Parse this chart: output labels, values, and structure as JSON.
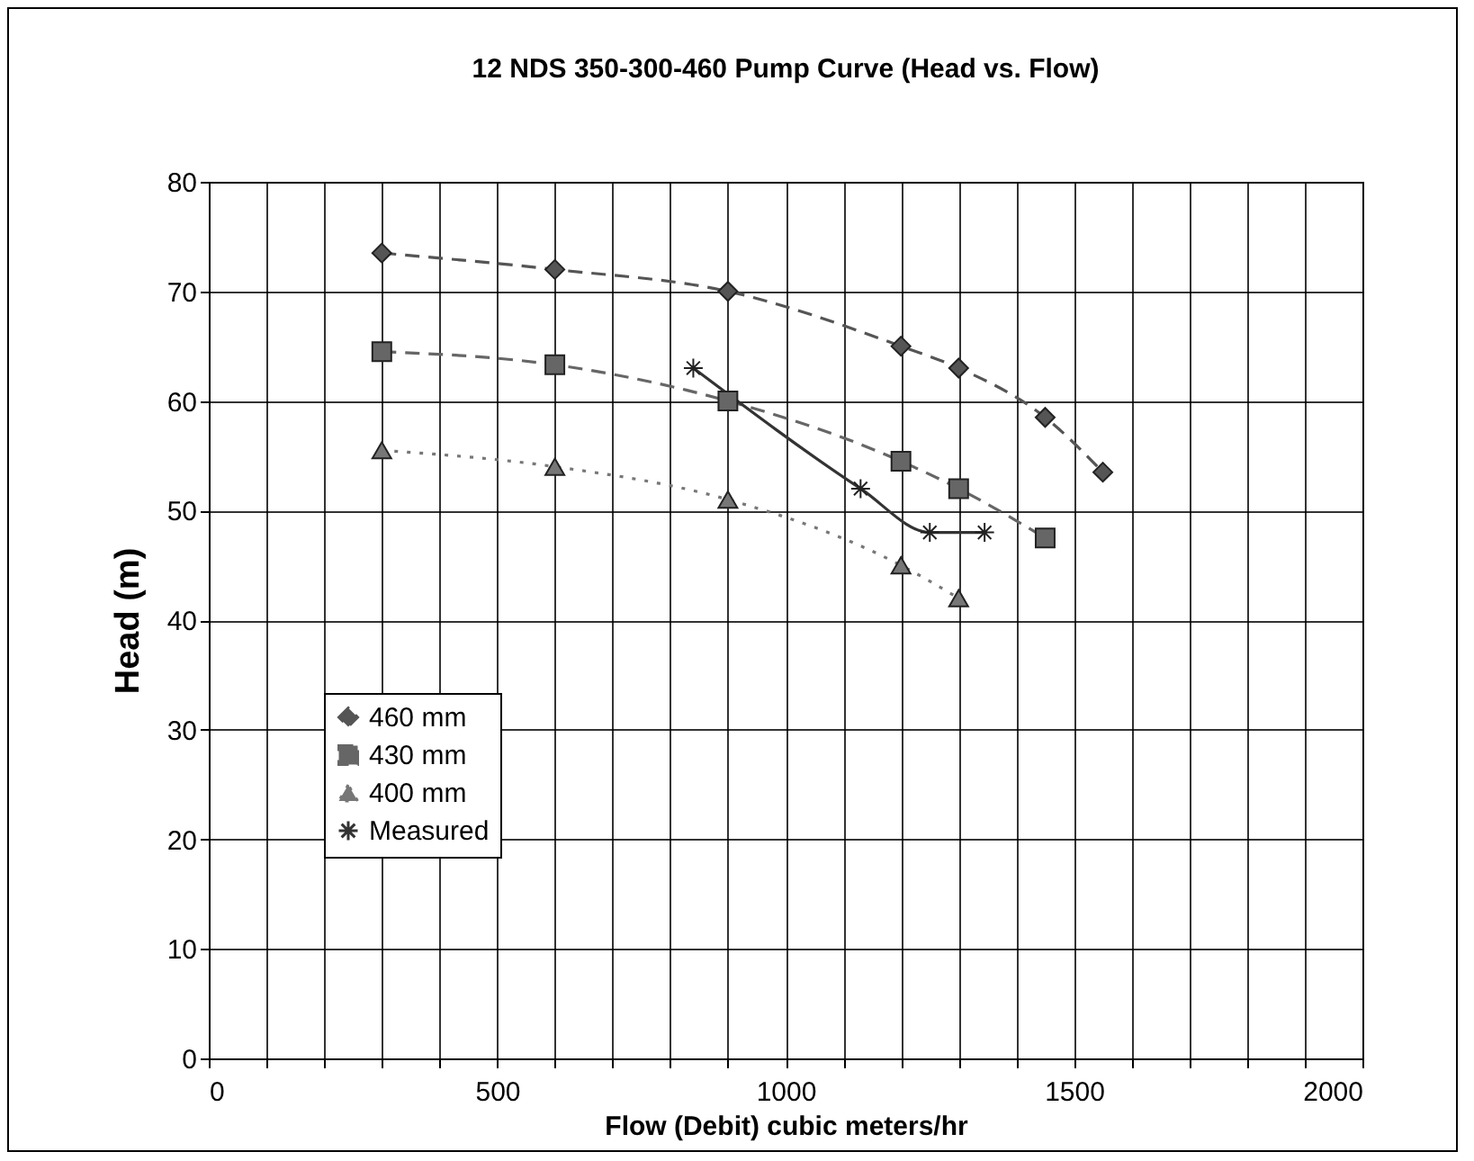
{
  "chart_data": {
    "type": "line",
    "title": "12 NDS 350-300-460 Pump Curve (Head vs. Flow)",
    "xlabel": "Flow (Debit) cubic meters/hr",
    "ylabel": "Head (m)",
    "xlim": [
      0,
      2000
    ],
    "xticks": [
      0,
      {
        "value": 100,
        "label": null
      },
      {
        "value": 200,
        "label": null
      },
      {
        "value": 300,
        "label": null
      },
      {
        "value": 400,
        "label": null
      },
      500,
      {
        "value": 600,
        "label": null
      },
      {
        "value": 700,
        "label": null
      },
      {
        "value": 800,
        "label": null
      },
      {
        "value": 900,
        "label": null
      },
      1000,
      {
        "value": 1100,
        "label": null
      },
      {
        "value": 1200,
        "label": null
      },
      {
        "value": 1300,
        "label": null
      },
      {
        "value": 1400,
        "label": null
      },
      1500,
      {
        "value": 1600,
        "label": null
      },
      {
        "value": 1700,
        "label": null
      },
      {
        "value": 1800,
        "label": null
      },
      {
        "value": 1900,
        "label": null
      },
      2000
    ],
    "ylim": [
      0,
      80
    ],
    "yticks": [
      0,
      10,
      20,
      30,
      40,
      50,
      60,
      70,
      80
    ],
    "grid": true,
    "legend": "left",
    "series": [
      {
        "name": "460 mm",
        "color": "#555555",
        "marker": "diamond",
        "line_style": "dashed",
        "x": [
          300,
          600,
          900,
          1200,
          1300,
          1450,
          1550
        ],
        "values": [
          73.5,
          72,
          70,
          65,
          63,
          58.5,
          53.5
        ]
      },
      {
        "name": "430 mm",
        "color": "#666666",
        "marker": "square",
        "line_style": "dashed",
        "x": [
          300,
          600,
          900,
          1200,
          1300,
          1450
        ],
        "values": [
          64.5,
          63.3,
          60,
          54.5,
          52,
          47.5
        ]
      },
      {
        "name": "400 mm",
        "color": "#777777",
        "marker": "triangle",
        "line_style": "dotted",
        "x": [
          300,
          600,
          900,
          1200,
          1300
        ],
        "values": [
          55.5,
          54,
          51,
          45,
          42
        ]
      },
      {
        "name": "Measured",
        "color": "#333333",
        "marker": "cross",
        "line_style": "solid",
        "x": [
          840,
          1130,
          1250,
          1345
        ],
        "values": [
          63,
          52,
          48,
          48
        ]
      }
    ]
  }
}
